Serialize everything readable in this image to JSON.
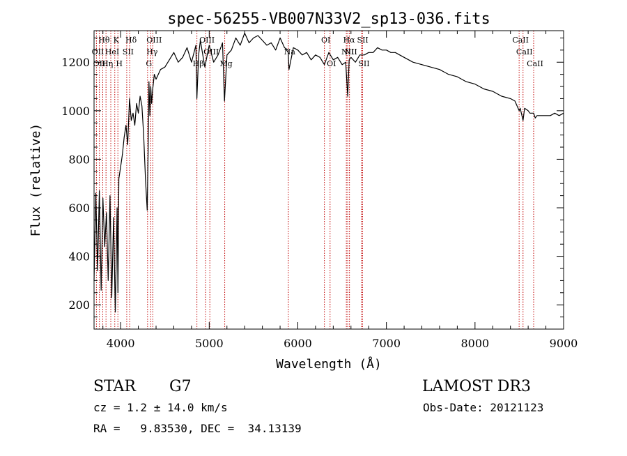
{
  "chart_data": {
    "type": "line",
    "title": "spec-56255-VB007N33V2_sp13-036.fits",
    "xlabel": "Wavelength (Å)",
    "ylabel": "Flux (relative)",
    "xlim": [
      3700,
      9000
    ],
    "ylim": [
      100,
      1330
    ],
    "x_ticks": [
      4000,
      5000,
      6000,
      7000,
      8000,
      9000
    ],
    "y_ticks": [
      200,
      400,
      600,
      800,
      1000,
      1200
    ],
    "x_tick_labels": [
      "4000",
      "5000",
      "6000",
      "7000",
      "8000",
      "9000"
    ],
    "y_tick_labels": [
      "200",
      "400",
      "600",
      "800",
      "1000",
      "1200"
    ],
    "x_minor_step": 200,
    "y_minor_step": 50,
    "line_color": "#000000",
    "marker_color": "#c00000",
    "series": [
      {
        "name": "flux",
        "x": [
          3700,
          3720,
          3740,
          3760,
          3780,
          3800,
          3820,
          3840,
          3860,
          3880,
          3900,
          3920,
          3940,
          3960,
          3970,
          3980,
          4000,
          4020,
          4040,
          4060,
          4080,
          4100,
          4120,
          4140,
          4160,
          4180,
          4200,
          4220,
          4240,
          4260,
          4280,
          4300,
          4310,
          4320,
          4330,
          4340,
          4350,
          4360,
          4380,
          4400,
          4450,
          4500,
          4550,
          4600,
          4650,
          4700,
          4750,
          4800,
          4850,
          4861,
          4880,
          4900,
          4950,
          5000,
          5050,
          5100,
          5150,
          5172,
          5200,
          5250,
          5300,
          5350,
          5400,
          5450,
          5500,
          5550,
          5600,
          5650,
          5700,
          5750,
          5800,
          5850,
          5890,
          5900,
          5950,
          6000,
          6050,
          6100,
          6150,
          6200,
          6250,
          6300,
          6350,
          6400,
          6450,
          6500,
          6540,
          6563,
          6580,
          6600,
          6650,
          6700,
          6750,
          6800,
          6850,
          6900,
          6950,
          7000,
          7050,
          7100,
          7150,
          7200,
          7300,
          7400,
          7500,
          7600,
          7700,
          7800,
          7900,
          8000,
          8100,
          8200,
          8300,
          8400,
          8450,
          8498,
          8510,
          8542,
          8560,
          8600,
          8620,
          8662,
          8680,
          8700,
          8750,
          8800,
          8850,
          8900,
          8950,
          9000
        ],
        "y": [
          300,
          660,
          340,
          670,
          260,
          640,
          440,
          580,
          300,
          650,
          230,
          560,
          170,
          600,
          250,
          720,
          770,
          820,
          890,
          940,
          860,
          1050,
          960,
          990,
          940,
          1030,
          990,
          1060,
          1020,
          900,
          720,
          590,
          830,
          1120,
          980,
          1100,
          1030,
          1080,
          1150,
          1130,
          1170,
          1180,
          1210,
          1240,
          1200,
          1220,
          1260,
          1200,
          1270,
          1050,
          1230,
          1290,
          1180,
          1270,
          1200,
          1230,
          1280,
          1040,
          1230,
          1250,
          1300,
          1270,
          1320,
          1280,
          1300,
          1310,
          1290,
          1270,
          1280,
          1250,
          1300,
          1260,
          1250,
          1170,
          1260,
          1250,
          1230,
          1240,
          1210,
          1230,
          1220,
          1190,
          1240,
          1210,
          1220,
          1190,
          1200,
          1060,
          1210,
          1220,
          1200,
          1230,
          1230,
          1240,
          1240,
          1260,
          1250,
          1250,
          1240,
          1240,
          1230,
          1220,
          1200,
          1190,
          1180,
          1170,
          1150,
          1140,
          1120,
          1110,
          1090,
          1080,
          1060,
          1050,
          1040,
          1000,
          1010,
          960,
          1010,
          1000,
          990,
          990,
          970,
          980,
          980,
          980,
          980,
          990,
          980,
          990
        ]
      }
    ],
    "line_markers": [
      {
        "label": "Hθ",
        "x": 3798
      },
      {
        "label": "K",
        "x": 3934
      },
      {
        "label": "Hδ",
        "x": 4102
      },
      {
        "label": "OII",
        "x": 3727
      },
      {
        "label": "HeI",
        "x": 3889
      },
      {
        "label": "SII",
        "x": 4069
      },
      {
        "label": "OIII",
        "x": 3760
      },
      {
        "label": "Hη",
        "x": 3835
      },
      {
        "label": "H",
        "x": 3969
      },
      {
        "label": "OIII",
        "x": 4363
      },
      {
        "label": "Hγ",
        "x": 4340
      },
      {
        "label": "G",
        "x": 4304
      },
      {
        "label": "OIII",
        "x": 4959
      },
      {
        "label": "OIII",
        "x": 5007
      },
      {
        "label": "Hβ",
        "x": 4861
      },
      {
        "label": "Mg",
        "x": 5175
      },
      {
        "label": "Na",
        "x": 5893
      },
      {
        "label": "OI",
        "x": 6300
      },
      {
        "label": "OI",
        "x": 6364
      },
      {
        "label": "Hα",
        "x": 6563
      },
      {
        "label": "SII",
        "x": 6717
      },
      {
        "label": "NII",
        "x": 6548
      },
      {
        "label": "NII",
        "x": 6583
      },
      {
        "label": "SII",
        "x": 6731
      },
      {
        "label": "CaII",
        "x": 8498
      },
      {
        "label": "CaII",
        "x": 8542
      },
      {
        "label": "CaII",
        "x": 8662
      }
    ]
  },
  "info": {
    "object_class": "STAR",
    "subclass": "G7",
    "survey": "LAMOST DR3",
    "cz_text": "cz = 1.2 ± 14.0 km/s",
    "obs_date_text": "Obs-Date: 20121123",
    "radec_text": "RA =   9.83530, DEC =  34.13139"
  }
}
